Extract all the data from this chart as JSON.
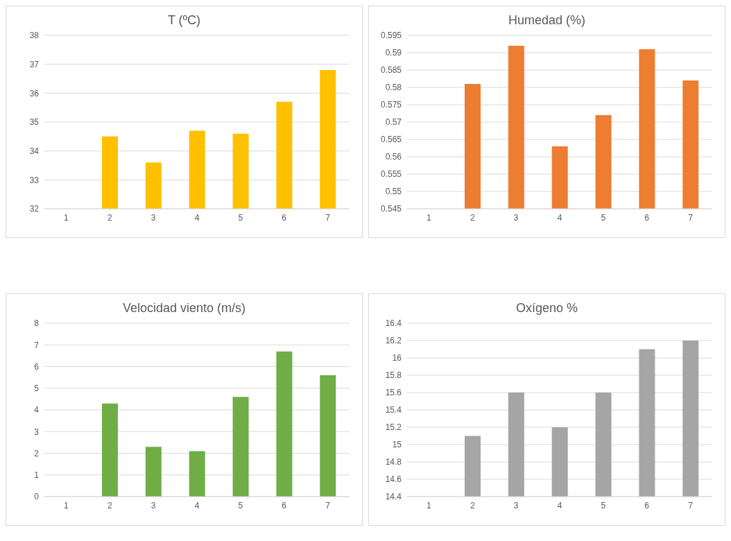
{
  "chart_data": [
    {
      "type": "bar",
      "title": "T (ºC)",
      "categories": [
        "1",
        "2",
        "3",
        "4",
        "5",
        "6",
        "7"
      ],
      "values": [
        null,
        34.5,
        33.6,
        34.7,
        34.6,
        35.7,
        36.8
      ],
      "color": "#ffc000",
      "ylim": [
        32,
        38
      ],
      "yticks": [
        32,
        33,
        34,
        35,
        36,
        37,
        38
      ],
      "grid": "y"
    },
    {
      "type": "bar",
      "title": "Humedad (%)",
      "categories": [
        "1",
        "2",
        "3",
        "4",
        "5",
        "6",
        "7"
      ],
      "values": [
        null,
        0.581,
        0.592,
        0.563,
        0.572,
        0.591,
        0.582
      ],
      "color": "#ed7d31",
      "ylim": [
        0.545,
        0.595
      ],
      "yticks": [
        0.545,
        0.55,
        0.555,
        0.56,
        0.565,
        0.57,
        0.575,
        0.58,
        0.585,
        0.59,
        0.595
      ],
      "grid": "y"
    },
    {
      "type": "bar",
      "title": "Velocidad viento (m/s)",
      "categories": [
        "1",
        "2",
        "3",
        "4",
        "5",
        "6",
        "7"
      ],
      "values": [
        null,
        4.3,
        2.3,
        2.1,
        4.6,
        6.7,
        5.6
      ],
      "color": "#70ad47",
      "ylim": [
        0,
        8
      ],
      "yticks": [
        0,
        1,
        2,
        3,
        4,
        5,
        6,
        7,
        8
      ],
      "grid": "y"
    },
    {
      "type": "bar",
      "title": "Oxígeno %",
      "categories": [
        "1",
        "2",
        "3",
        "4",
        "5",
        "6",
        "7"
      ],
      "values": [
        null,
        15.1,
        15.6,
        15.2,
        15.6,
        16.1,
        16.2
      ],
      "color": "#a5a5a5",
      "ylim": [
        14.4,
        16.4
      ],
      "yticks": [
        14.4,
        14.6,
        14.8,
        15,
        15.2,
        15.4,
        15.6,
        15.8,
        16,
        16.2,
        16.4
      ],
      "grid": "y"
    }
  ]
}
